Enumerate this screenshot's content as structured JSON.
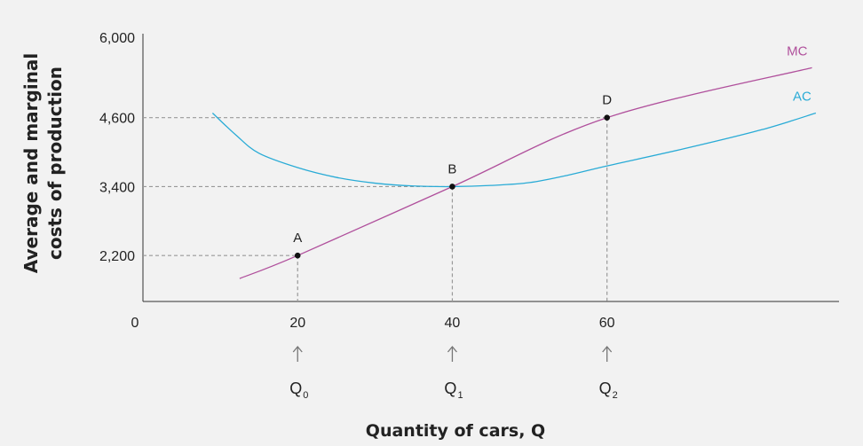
{
  "chart_data": {
    "type": "line",
    "title": "",
    "ylabel_lines": [
      "Average and marginal",
      "costs of production"
    ],
    "xlabel": "Quantity of cars, Q",
    "origin_label": "0",
    "xlim": [
      0,
      90
    ],
    "ylim": [
      1400,
      6000
    ],
    "yticks": [
      {
        "value": 2200,
        "label": "2,200"
      },
      {
        "value": 3400,
        "label": "3,400"
      },
      {
        "value": 4600,
        "label": "4,600"
      },
      {
        "value": 6000,
        "label": "6,000"
      }
    ],
    "xticks": [
      {
        "value": 20,
        "label": "20",
        "q_main": "Q",
        "q_sub": "0"
      },
      {
        "value": 40,
        "label": "40",
        "q_main": "Q",
        "q_sub": "1"
      },
      {
        "value": 60,
        "label": "60",
        "q_main": "Q",
        "q_sub": "2"
      }
    ],
    "series": [
      {
        "name": "MC",
        "color": "#b0509c",
        "x": [
          12.5,
          20,
          40,
          60,
          86.5
        ],
        "y": [
          1800,
          2200,
          3400,
          4600,
          5470
        ]
      },
      {
        "name": "AC",
        "color": "#29abd6",
        "x": [
          9,
          12,
          15,
          20,
          25,
          30,
          35,
          40,
          45,
          50,
          55,
          60,
          70,
          80,
          87
        ],
        "y": [
          4680,
          4300,
          3980,
          3730,
          3560,
          3460,
          3410,
          3400,
          3420,
          3470,
          3600,
          3760,
          4060,
          4390,
          4680
        ]
      }
    ],
    "points": [
      {
        "label": "A",
        "x": 20,
        "y": 2200
      },
      {
        "label": "B",
        "x": 40,
        "y": 3400
      },
      {
        "label": "D",
        "x": 60,
        "y": 4600
      }
    ],
    "grid": false,
    "reference_lines": "dashed",
    "axis_color": "#333333",
    "dash_color": "#999999"
  }
}
